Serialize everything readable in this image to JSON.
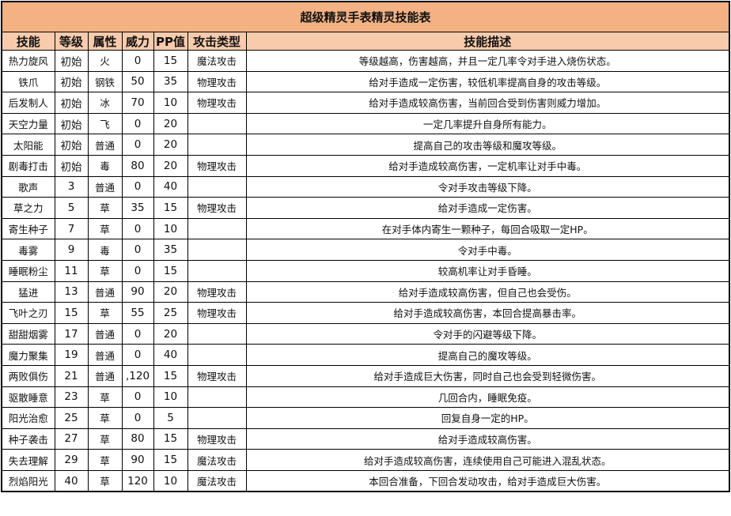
{
  "title": "超级精灵手表精灵技能表",
  "headers": [
    "技能",
    "等级",
    "属性",
    "威力",
    "PP值",
    "攻击类型",
    "技能描述"
  ],
  "colors": {
    "title_bg": "#f4b183",
    "header_bg": "#f8cbad"
  },
  "rows": [
    [
      "热力旋风",
      "初始",
      "火",
      "0",
      "15",
      "魔法攻击",
      "等级越高，伤害越高，并且一定几率令对手进入烧伤状态。"
    ],
    [
      "铁爪",
      "初始",
      "钢铁",
      "50",
      "35",
      "物理攻击",
      "给对手造成一定伤害，较低机率提高自身的攻击等级。"
    ],
    [
      "后发制人",
      "初始",
      "冰",
      "70",
      "10",
      "物理攻击",
      "给对手造成较高伤害，当前回合受到伤害则威力增加。"
    ],
    [
      "天空力量",
      "初始",
      "飞",
      "0",
      "20",
      "",
      "一定几率提升自身所有能力。"
    ],
    [
      "太阳能",
      "初始",
      "普通",
      "0",
      "20",
      "",
      "提高自己的攻击等级和魔攻等级。"
    ],
    [
      "剧毒打击",
      "初始",
      "毒",
      "80",
      "20",
      "物理攻击",
      "给对手造成较高伤害，一定机率让对手中毒。"
    ],
    [
      "歌声",
      "3",
      "普通",
      "0",
      "40",
      "",
      "令对手攻击等级下降。"
    ],
    [
      "草之力",
      "5",
      "草",
      "35",
      "15",
      "物理攻击",
      "给对手造成一定伤害。"
    ],
    [
      "寄生种子",
      "7",
      "草",
      "0",
      "10",
      "",
      "在对手体内寄生一颗种子，每回合吸取一定HP。"
    ],
    [
      "毒雾",
      "9",
      "毒",
      "0",
      "35",
      "",
      "令对手中毒。"
    ],
    [
      "睡眠粉尘",
      "11",
      "草",
      "0",
      "15",
      "",
      "较高机率让对手昏睡。"
    ],
    [
      "猛进",
      "13",
      "普通",
      "90",
      "20",
      "物理攻击",
      "给对手造成较高伤害，但自己也会受伤。"
    ],
    [
      "飞叶之刃",
      "15",
      "草",
      "55",
      "25",
      "物理攻击",
      "给对手造成较高伤害，本回合提高暴击率。"
    ],
    [
      "甜甜烟雾",
      "17",
      "普通",
      "0",
      "20",
      "",
      "令对手的闪避等级下降。"
    ],
    [
      "魔力聚集",
      "19",
      "普通",
      "0",
      "40",
      "",
      "提高自己的魔攻等级。"
    ],
    [
      "两败俱伤",
      "21",
      "普通",
      ",120",
      "15",
      "物理攻击",
      "给对手造成巨大伤害，同时自己也会受到轻微伤害。"
    ],
    [
      "驱散睡意",
      "23",
      "草",
      "0",
      "10",
      "",
      "几回合内，睡眠免疫。"
    ],
    [
      "阳光治愈",
      "25",
      "草",
      "0",
      "5",
      "",
      "回复自身一定的HP。"
    ],
    [
      "种子袭击",
      "27",
      "草",
      "80",
      "15",
      "物理攻击",
      "给对手造成较高伤害。"
    ],
    [
      "失去理解",
      "29",
      "草",
      "90",
      "15",
      "魔法攻击",
      "给对手造成较高伤害，连续使用自己可能进入混乱状态。"
    ],
    [
      "烈焰阳光",
      "40",
      "草",
      "120",
      "10",
      "魔法攻击",
      "本回合准备，下回合发动攻击，给对手造成巨大伤害。"
    ]
  ]
}
